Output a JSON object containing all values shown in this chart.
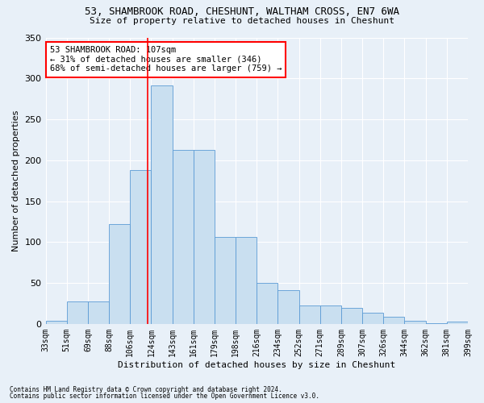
{
  "title1": "53, SHAMBROOK ROAD, CHESHUNT, WALTHAM CROSS, EN7 6WA",
  "title2": "Size of property relative to detached houses in Cheshunt",
  "xlabel": "Distribution of detached houses by size in Cheshunt",
  "ylabel": "Number of detached properties",
  "footer1": "Contains HM Land Registry data © Crown copyright and database right 2024.",
  "footer2": "Contains public sector information licensed under the Open Government Licence v3.0.",
  "annotation_line1": "53 SHAMBROOK ROAD: 107sqm",
  "annotation_line2": "← 31% of detached houses are smaller (346)",
  "annotation_line3": "68% of semi-detached houses are larger (759) →",
  "bar_heights": [
    4,
    27,
    27,
    122,
    188,
    291,
    213,
    213,
    106,
    106,
    50,
    41,
    22,
    22,
    20,
    14,
    9,
    4,
    1,
    3
  ],
  "categories": [
    "33sqm",
    "51sqm",
    "69sqm",
    "88sqm",
    "106sqm",
    "124sqm",
    "143sqm",
    "161sqm",
    "179sqm",
    "198sqm",
    "216sqm",
    "234sqm",
    "252sqm",
    "271sqm",
    "289sqm",
    "307sqm",
    "326sqm",
    "344sqm",
    "362sqm",
    "381sqm",
    "399sqm"
  ],
  "property_line_x": 4.85,
  "bar_color": "#c9dff0",
  "bar_edge_color": "#5b9bd5",
  "highlight_bar_color": "#5b9bd5",
  "bg_color": "#e8f0f8",
  "grid_color": "#d0dce8",
  "ylim": [
    0,
    350
  ],
  "yticks": [
    0,
    50,
    100,
    150,
    200,
    250,
    300,
    350
  ]
}
